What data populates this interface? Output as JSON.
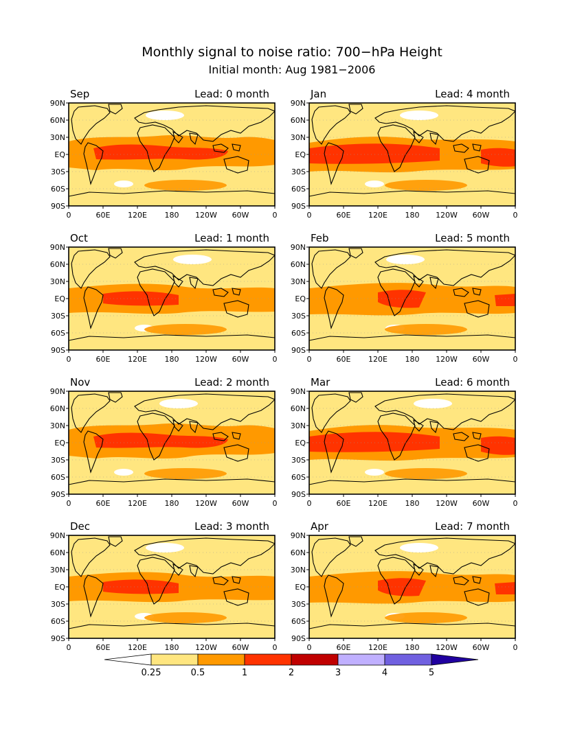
{
  "title": "Monthly signal to noise ratio: 700−hPa Height",
  "subtitle": "Initial month: Aug 1981−2006",
  "lat_labels": [
    "90N",
    "60N",
    "30N",
    "EQ",
    "30S",
    "60S",
    "90S"
  ],
  "lon_labels": [
    "0",
    "60E",
    "120E",
    "180",
    "120W",
    "60W",
    "0"
  ],
  "panels": [
    {
      "month": "Sep",
      "lead": "Lead: 0 month"
    },
    {
      "month": "Jan",
      "lead": "Lead: 4 month"
    },
    {
      "month": "Oct",
      "lead": "Lead: 1 month"
    },
    {
      "month": "Feb",
      "lead": "Lead: 5 month"
    },
    {
      "month": "Nov",
      "lead": "Lead: 2 month"
    },
    {
      "month": "Mar",
      "lead": "Lead: 6 month"
    },
    {
      "month": "Dec",
      "lead": "Lead: 3 month"
    },
    {
      "month": "Apr",
      "lead": "Lead: 7 month"
    }
  ],
  "colorbar": {
    "levels": [
      "0.25",
      "0.5",
      "1",
      "2",
      "3",
      "4",
      "5"
    ],
    "colors": [
      "#ffffff",
      "#ffe680",
      "#ff9900",
      "#ff3300",
      "#c00000",
      "#c0b0ff",
      "#7060e0",
      "#2000a0"
    ]
  }
}
